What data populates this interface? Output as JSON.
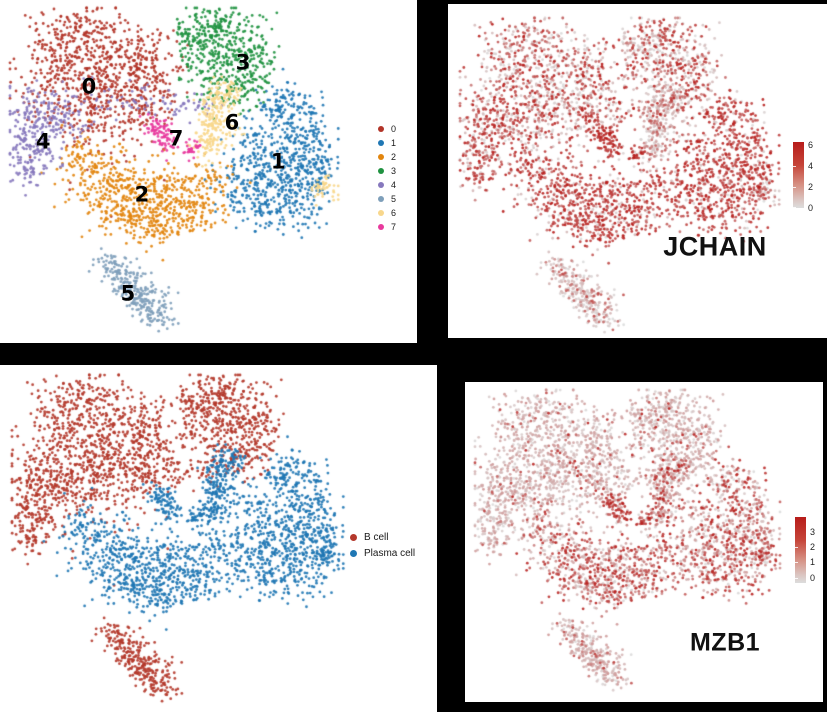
{
  "figure": {
    "background_color": "#000000",
    "panel_background": "#ffffff",
    "description": "2x2 grid of UMAP scatter panels: leiden clusters, JCHAIN expression, cell types, MZB1 expression"
  },
  "chart_data": [
    {
      "type": "scatter",
      "name": "umap-clusters",
      "title": "",
      "legend_position": "right",
      "legend_items": [
        {
          "label": "0",
          "color": "#b23428"
        },
        {
          "label": "1",
          "color": "#1f77b4"
        },
        {
          "label": "2",
          "color": "#e2850e"
        },
        {
          "label": "3",
          "color": "#1f9240"
        },
        {
          "label": "4",
          "color": "#8678bd"
        },
        {
          "label": "5",
          "color": "#7e9fba"
        },
        {
          "label": "6",
          "color": "#f8d78c"
        },
        {
          "label": "7",
          "color": "#e83a9d"
        }
      ],
      "cluster_labels": [
        {
          "text": "0",
          "x": 24.3,
          "y": 24.3
        },
        {
          "text": "1",
          "x": 82.5,
          "y": 47.4
        },
        {
          "text": "2",
          "x": 40.6,
          "y": 57.5
        },
        {
          "text": "3",
          "x": 71.7,
          "y": 16.9
        },
        {
          "text": "4",
          "x": 10.2,
          "y": 41.2
        },
        {
          "text": "5",
          "x": 36.3,
          "y": 88.0
        },
        {
          "text": "6",
          "x": 68.3,
          "y": 35.4
        },
        {
          "text": "7",
          "x": 51.1,
          "y": 40.3
        }
      ],
      "clusters": [
        {
          "id": 0,
          "color": "#b23428",
          "cell_type": "B cell",
          "components": [
            [
              20,
              8,
              7,
              5,
              170
            ],
            [
              33,
              15,
              8,
              6,
              180
            ],
            [
              13,
              22,
              6,
              6,
              130
            ],
            [
              29,
              26,
              7,
              6,
              150
            ],
            [
              44,
              20,
              5,
              6,
              110
            ],
            [
              24,
              33,
              7,
              5,
              80
            ],
            [
              40,
              32,
              5,
              4,
              60
            ],
            [
              33,
              45,
              9,
              6,
              30
            ]
          ]
        },
        {
          "id": 1,
          "color": "#1f77b4",
          "cell_type": "Plasma cell",
          "components": [
            [
              85,
              31,
              5,
              4,
              110
            ],
            [
              88,
              42,
              5,
              7,
              160
            ],
            [
              80,
              50,
              6,
              6,
              140
            ],
            [
              90,
              55,
              4,
              6,
              110
            ],
            [
              79,
              60,
              6,
              4,
              90
            ],
            [
              95,
              48,
              3,
              7,
              60
            ],
            [
              74,
              43,
              3,
              4,
              40
            ],
            [
              70,
              55,
              4,
              5,
              50
            ],
            [
              86,
              64,
              5,
              3,
              30
            ]
          ]
        },
        {
          "id": 2,
          "color": "#e2850e",
          "cell_type": "Plasma cell",
          "components": [
            [
              28,
              52,
              6,
              5,
              120
            ],
            [
              40,
              57,
              7,
              5,
              150
            ],
            [
              52,
              57,
              6,
              5,
              120
            ],
            [
              33,
              63,
              5,
              4,
              90
            ],
            [
              46,
              66,
              5,
              4,
              90
            ],
            [
              58,
              63,
              4,
              4,
              60
            ],
            [
              22,
              47,
              4,
              4,
              60
            ],
            [
              63,
              53,
              3,
              3,
              30
            ],
            [
              46,
              68,
              4,
              2.5,
              25
            ]
          ]
        },
        {
          "id": 3,
          "color": "#1f9240",
          "cell_type": "B cell",
          "components": [
            [
              62,
              5,
              5,
              3,
              100
            ],
            [
              70,
              12,
              6,
              5,
              140
            ],
            [
              60,
              15,
              4,
              5,
              90
            ],
            [
              74,
              20,
              4,
              6,
              90
            ],
            [
              66,
              25,
              4,
              4,
              70
            ],
            [
              56,
              9,
              3,
              3,
              50
            ]
          ]
        },
        {
          "id": 4,
          "color": "#8678bd",
          "cell_type": "B cell",
          "components": [
            [
              6,
              34,
              4,
              5,
              90
            ],
            [
              10,
              42,
              4,
              5,
              90
            ],
            [
              5,
              47,
              3,
              4,
              60
            ],
            [
              14,
              33,
              3,
              3,
              40
            ],
            [
              28,
              28,
              10,
              2.5,
              45
            ],
            [
              45,
              29,
              8,
              2.5,
              35
            ],
            [
              58,
              30,
              4,
              2,
              20
            ],
            [
              20,
              36,
              3,
              3,
              20
            ]
          ]
        },
        {
          "id": 5,
          "color": "#7e9fba",
          "cell_type": "B cell",
          "components": [
            [
              31,
              79,
              2.5,
              2,
              40
            ],
            [
              35,
              83,
              3,
              2.5,
              60
            ],
            [
              39,
              87,
              3,
              2.5,
              70
            ],
            [
              43,
              91,
              3,
              2.5,
              65
            ],
            [
              46,
              95,
              2.5,
              2,
              45
            ]
          ]
        },
        {
          "id": 6,
          "color": "#f8d78c",
          "cell_type": "Plasma cell",
          "components": [
            [
              63,
              30,
              3,
              3,
              70
            ],
            [
              64,
              36,
              3,
              4,
              85
            ],
            [
              61,
              42,
              2.5,
              3,
              55
            ],
            [
              66,
              26,
              2.5,
              2,
              45
            ],
            [
              97,
              54,
              2.5,
              2,
              30
            ],
            [
              99,
              57,
              2,
              1.5,
              15
            ]
          ]
        },
        {
          "id": 7,
          "color": "#e83a9d",
          "cell_type": "Plasma cell",
          "components": [
            [
              46,
              37,
              2.3,
              2.3,
              60
            ],
            [
              48,
              41,
              1.8,
              1.8,
              30
            ],
            [
              56,
              43,
              1.6,
              1.6,
              28
            ]
          ]
        }
      ]
    },
    {
      "type": "scatter",
      "name": "umap-jchain",
      "title": "JCHAIN",
      "colorbar": {
        "ticks": [
          "6",
          "4",
          "2",
          "0"
        ],
        "vmax": 6,
        "low_color": "#dcdddd",
        "high_color": "#b71c1a"
      },
      "expression_by_cluster": {
        "0": [
          0.6,
          2,
          6
        ],
        "1": [
          0.88,
          3,
          6
        ],
        "2": [
          0.85,
          3,
          6
        ],
        "3": [
          0.5,
          2,
          6
        ],
        "4": [
          0.7,
          2,
          6
        ],
        "5": [
          0.3,
          1,
          4.5
        ],
        "6": [
          0.45,
          1,
          4
        ],
        "7": [
          0.92,
          4,
          6
        ]
      }
    },
    {
      "type": "scatter",
      "name": "umap-celltype",
      "legend_items": [
        {
          "label": "B cell",
          "color": "#b4382b"
        },
        {
          "label": "Plasma cell",
          "color": "#1f77b4"
        }
      ],
      "type_of_cluster": {
        "0": "B cell",
        "1": "Plasma cell",
        "2": "Plasma cell",
        "3": "B cell",
        "4": "B cell",
        "5": "B cell",
        "6": "Plasma cell",
        "7": "Plasma cell"
      }
    },
    {
      "type": "scatter",
      "name": "umap-mzb1",
      "title": "MZB1",
      "colorbar": {
        "ticks": [
          "3",
          "2",
          "1",
          "0"
        ],
        "vmax": 3,
        "low_color": "#dcdddd",
        "high_color": "#b71c1a"
      },
      "expression_by_cluster": {
        "0": [
          0.1,
          1,
          3
        ],
        "1": [
          0.55,
          1,
          3
        ],
        "2": [
          0.5,
          1,
          3
        ],
        "3": [
          0.12,
          1,
          3
        ],
        "4": [
          0.12,
          1,
          2.5
        ],
        "5": [
          0.12,
          1,
          2.5
        ],
        "6": [
          0.4,
          1,
          3
        ],
        "7": [
          0.75,
          1.5,
          3
        ]
      },
      "bottom_enriched_clusters": [
        1,
        2
      ]
    }
  ]
}
